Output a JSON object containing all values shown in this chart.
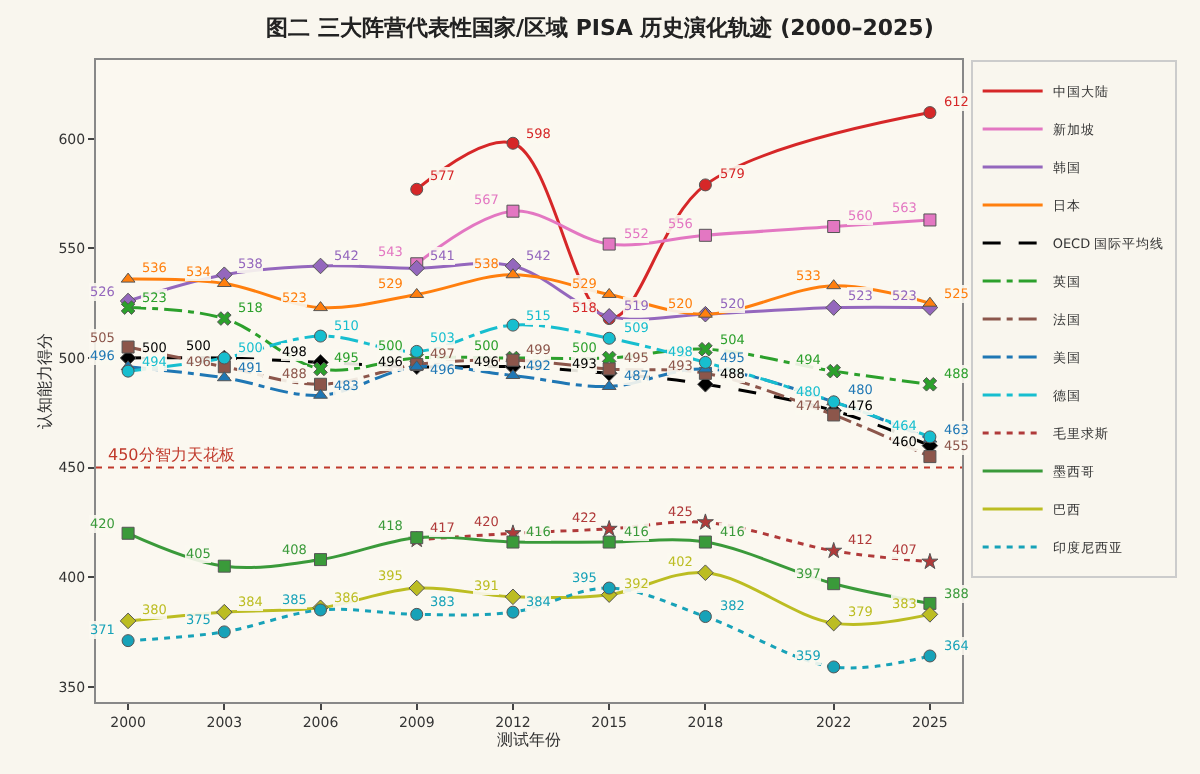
{
  "chart_data": {
    "type": "line",
    "title": "图二 三大阵营代表性国家/区域 PISA 历史演化轨迹 (2000–2025)",
    "xlabel": "测试年份",
    "ylabel": "认知能力得分",
    "x": [
      2000,
      2003,
      2006,
      2009,
      2012,
      2015,
      2018,
      2022,
      2025
    ],
    "xlim": [
      1999,
      2026
    ],
    "xticks": [
      2000,
      2003,
      2006,
      2009,
      2012,
      2015,
      2018,
      2022,
      2025
    ],
    "ylim": [
      343,
      636
    ],
    "yticks": [
      350,
      400,
      450,
      500,
      550,
      600
    ],
    "grid": false,
    "legend": "top right",
    "data_labels": true,
    "ref_lines": [
      {
        "axis": "y",
        "value": 450,
        "label": "450分智力天花板",
        "color": "#c0392b",
        "line_style": "dotted"
      }
    ],
    "series": [
      {
        "name": "中国大陆",
        "color": "#d62728",
        "marker": "circle",
        "line_style": "solid",
        "values": [
          null,
          null,
          null,
          577,
          598,
          518,
          579,
          null,
          612
        ]
      },
      {
        "name": "新加坡",
        "color": "#e377c2",
        "marker": "square",
        "line_style": "solid",
        "values": [
          null,
          null,
          null,
          543,
          567,
          552,
          556,
          560,
          563
        ]
      },
      {
        "name": "韩国",
        "color": "#9467bd",
        "marker": "diamond",
        "line_style": "solid",
        "values": [
          526,
          538,
          542,
          541,
          542,
          519,
          520,
          523,
          523
        ]
      },
      {
        "name": "日本",
        "color": "#ff7f0e",
        "marker": "triangle",
        "line_style": "solid",
        "values": [
          536,
          534,
          523,
          529,
          538,
          529,
          520,
          533,
          525
        ]
      },
      {
        "name": "OECD 国际平均线",
        "color": "#000000",
        "marker": "diamond",
        "line_style": "dashed",
        "values": [
          500,
          500,
          498,
          496,
          496,
          493,
          488,
          476,
          460
        ]
      },
      {
        "name": "英国",
        "color": "#2ca02c",
        "marker": "cross",
        "line_style": "dashdot",
        "values": [
          523,
          518,
          495,
          500,
          500,
          500,
          504,
          494,
          488
        ]
      },
      {
        "name": "法国",
        "color": "#8c564b",
        "marker": "square",
        "line_style": "dashdot",
        "values": [
          505,
          496,
          488,
          497,
          499,
          495,
          493,
          474,
          455
        ]
      },
      {
        "name": "美国",
        "color": "#1f77b4",
        "marker": "triangle",
        "line_style": "dashdot",
        "values": [
          496,
          491,
          483,
          496,
          492,
          487,
          495,
          480,
          463
        ]
      },
      {
        "name": "德国",
        "color": "#17becf",
        "marker": "circle",
        "line_style": "dashdot",
        "values": [
          494,
          500,
          510,
          503,
          515,
          509,
          498,
          480,
          464
        ]
      },
      {
        "name": "毛里求斯",
        "color": "#b03a3a",
        "marker": "star",
        "line_style": "dotted",
        "values": [
          null,
          null,
          null,
          417,
          420,
          422,
          425,
          412,
          407
        ]
      },
      {
        "name": "墨西哥",
        "color": "#3a9a3a",
        "marker": "square",
        "line_style": "solid",
        "values": [
          420,
          405,
          408,
          418,
          416,
          416,
          416,
          397,
          388
        ]
      },
      {
        "name": "巴西",
        "color": "#bcbd22",
        "marker": "diamond",
        "line_style": "solid",
        "values": [
          380,
          384,
          386,
          395,
          391,
          392,
          402,
          379,
          383
        ]
      },
      {
        "name": "印度尼西亚",
        "color": "#17a2b8",
        "marker": "circle",
        "line_style": "dotted",
        "values": [
          371,
          375,
          385,
          383,
          384,
          395,
          382,
          359,
          364
        ]
      }
    ]
  }
}
